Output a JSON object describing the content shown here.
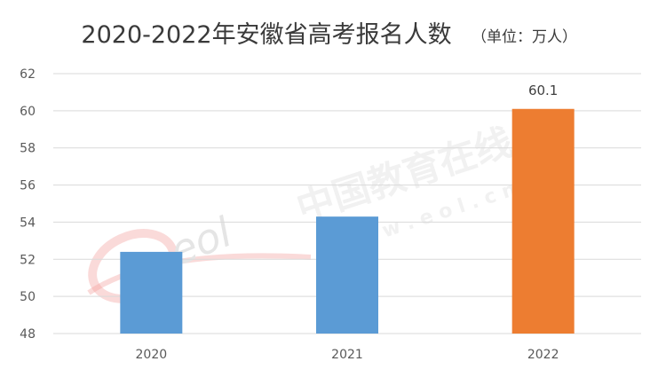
{
  "chart_data": {
    "type": "bar",
    "title": "2020-2022年安徽省高考报名人数",
    "unit_note": "（单位：万人）",
    "categories": [
      "2020",
      "2021",
      "2022"
    ],
    "values": [
      52.4,
      54.3,
      60.1
    ],
    "data_labels": [
      "",
      "",
      "60.1"
    ],
    "colors": [
      "#5b9bd5",
      "#5b9bd5",
      "#ed7d31"
    ],
    "ylim": [
      48,
      62
    ],
    "yticks": [
      48,
      50,
      52,
      54,
      56,
      58,
      60,
      62
    ],
    "grid": true,
    "xlabel": "",
    "ylabel": ""
  },
  "watermark": {
    "logo_text": "eol",
    "brand_text": "中国教育在线",
    "url_text": "w w w . e o l . c n",
    "colors": {
      "logo_red": "#e8423c",
      "logo_gray": "#cfcfcf",
      "text_gray": "#e3e3e3"
    }
  }
}
